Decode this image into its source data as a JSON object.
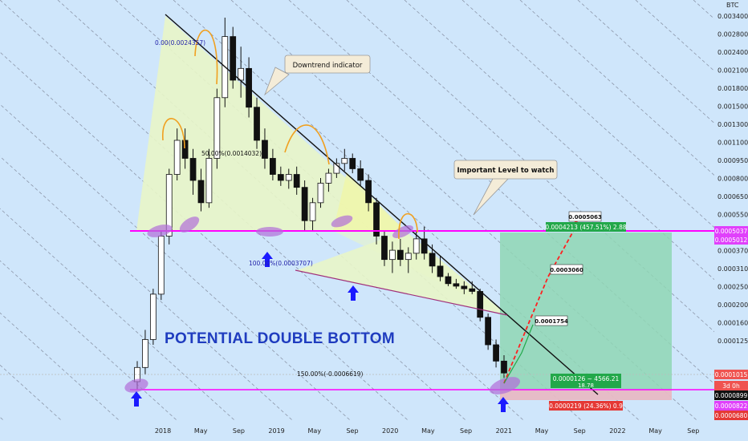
{
  "chart_data": {
    "type": "candlestick",
    "quote_currency": "BTC",
    "y_ticks": [
      "0.0034000",
      "0.0028000",
      "0.0024000",
      "0.0021000",
      "0.0018000",
      "0.0015000",
      "0.0013000",
      "0.0011000",
      "0.0009500",
      "0.0008000",
      "0.0006500",
      "0.0005500",
      "0.0004200",
      "0.0003700",
      "0.0003100",
      "0.0002500",
      "0.0002000",
      "0.0001600",
      "0.0001250",
      "0.0001015",
      "0.0000899",
      "0.0000822",
      "0.0000680"
    ],
    "x_ticks": [
      "2018",
      "May",
      "Sep",
      "2019",
      "May",
      "Sep",
      "2020",
      "May",
      "Sep",
      "2021",
      "May",
      "Sep",
      "2022",
      "May",
      "Sep"
    ],
    "price_badges": [
      {
        "text": "0.0005037",
        "color": "#e040fb"
      },
      {
        "text": "0.0005012",
        "color": "#e040fb"
      },
      {
        "text": "0.0001015",
        "color": "#ef5350"
      },
      {
        "text": "3d 0h",
        "color": "#ef5350"
      },
      {
        "text": "0.0000899",
        "color": "#111111"
      },
      {
        "text": "0.0000822",
        "color": "#e040fb"
      },
      {
        "text": "0.0000680",
        "color": "#e53935"
      }
    ],
    "candles": [
      [
        9e-05,
        0.00012,
        8e-05,
        0.00011
      ],
      [
        0.00011,
        0.00018,
        0.0001,
        0.00016
      ],
      [
        0.00016,
        0.0003,
        0.00015,
        0.00028
      ],
      [
        0.00028,
        0.0005,
        0.00026,
        0.00048
      ],
      [
        0.00048,
        0.0009,
        0.00045,
        0.00085
      ],
      [
        0.00085,
        0.0013,
        0.0008,
        0.0012
      ],
      [
        0.0012,
        0.0013,
        0.0009,
        0.001
      ],
      [
        0.001,
        0.0011,
        0.0007,
        0.0008
      ],
      [
        0.0008,
        0.0009,
        0.0006,
        0.00065
      ],
      [
        0.00065,
        0.0011,
        0.00062,
        0.001
      ],
      [
        0.001,
        0.0017,
        0.0009,
        0.0016
      ],
      [
        0.0016,
        0.0024,
        0.0015,
        0.0022
      ],
      [
        0.0022,
        0.0023,
        0.0017,
        0.0018
      ],
      [
        0.0018,
        0.0021,
        0.0016,
        0.0019
      ],
      [
        0.0019,
        0.002,
        0.0014,
        0.0015
      ],
      [
        0.0015,
        0.0016,
        0.0011,
        0.0012
      ],
      [
        0.0012,
        0.0013,
        0.0009,
        0.001
      ],
      [
        0.001,
        0.0011,
        0.0008,
        0.00085
      ],
      [
        0.00085,
        0.00092,
        0.00076,
        0.0008
      ],
      [
        0.0008,
        0.0009,
        0.00074,
        0.00085
      ],
      [
        0.00085,
        0.00092,
        0.0007,
        0.00075
      ],
      [
        0.00075,
        0.0008,
        0.0005,
        0.00055
      ],
      [
        0.00055,
        0.00068,
        0.0005,
        0.00065
      ],
      [
        0.00065,
        0.00082,
        0.00062,
        0.00078
      ],
      [
        0.00078,
        0.0009,
        0.00072,
        0.00086
      ],
      [
        0.00086,
        0.001,
        0.00082,
        0.00095
      ],
      [
        0.00095,
        0.0011,
        0.00088,
        0.001
      ],
      [
        0.001,
        0.00105,
        0.00086,
        0.0009
      ],
      [
        0.0009,
        0.00098,
        0.00076,
        0.0008
      ],
      [
        0.0008,
        0.00085,
        0.0006,
        0.00065
      ],
      [
        0.00065,
        0.00068,
        0.00045,
        0.00048
      ],
      [
        0.00048,
        0.0005,
        0.00038,
        0.0004
      ],
      [
        0.0004,
        0.00046,
        0.00036,
        0.00043
      ],
      [
        0.00043,
        0.00047,
        0.00038,
        0.0004
      ],
      [
        0.0004,
        0.00044,
        0.00036,
        0.00042
      ],
      [
        0.00042,
        0.0005,
        0.0004,
        0.00047
      ],
      [
        0.00047,
        0.00052,
        0.0004,
        0.00042
      ],
      [
        0.00042,
        0.00045,
        0.00036,
        0.00038
      ],
      [
        0.00038,
        0.00041,
        0.00033,
        0.00035
      ],
      [
        0.00035,
        0.00036,
        0.00031,
        0.00032
      ],
      [
        0.00032,
        0.00034,
        0.0003,
        0.00031
      ],
      [
        0.00031,
        0.00033,
        0.00028,
        0.0003
      ],
      [
        0.0003,
        0.00033,
        0.00028,
        0.00029
      ],
      [
        0.00029,
        0.0003,
        0.0002,
        0.00021
      ],
      [
        0.00021,
        0.00022,
        0.00014,
        0.00015
      ],
      [
        0.00015,
        0.00016,
        0.00011,
        0.00012
      ],
      [
        0.00012,
        0.00013,
        9.5e-05,
        0.000102
      ]
    ],
    "drawings": [
      {
        "type": "descending_trendline",
        "label": "Downtrend indicator"
      },
      {
        "type": "horizontal_level",
        "value": 0.0005037,
        "label": "Important Level to watch"
      },
      {
        "type": "horizontal_level",
        "value": 8.99e-05
      }
    ]
  },
  "annotations": {
    "downtrend_callout": "Downtrend indicator",
    "important_level_callout": "Important Level to watch",
    "big_text": "POTENTIAL DOUBLE BOTTOM",
    "fib_0": "0.00(0.0024357)",
    "fib_50": "50.00%(0.0014032)",
    "fib_100": "100.00%(0.0003707)",
    "fib_150": "150.00%(-0.0006619)",
    "target_label": "0.0005063",
    "mid_label": "0.0003060",
    "low_label": "0.0001754",
    "profit_box": "0.0004213 (457.51%) 2.88",
    "position_box": "0.0000126 ~ 4566.21",
    "position_sub": "18.78",
    "loss_box": "0.0000219 (24.36%) 0.9"
  },
  "colors": {
    "background": "#cfe6fb",
    "trendline": "#111111",
    "level_line": "#ff00ff",
    "triangle_fill": "#e8f5c8",
    "profit_zone": "#8fd6b4",
    "loss_zone": "#e7b9c4",
    "arrow": "#1a1aff",
    "callout": "#f4ecd8",
    "arcs": "#f0a020",
    "ellipses": "#b06dd8",
    "candle_up": "#111111",
    "candle_down": "#111111",
    "label_green": "#22a84a",
    "label_red": "#e53935"
  }
}
